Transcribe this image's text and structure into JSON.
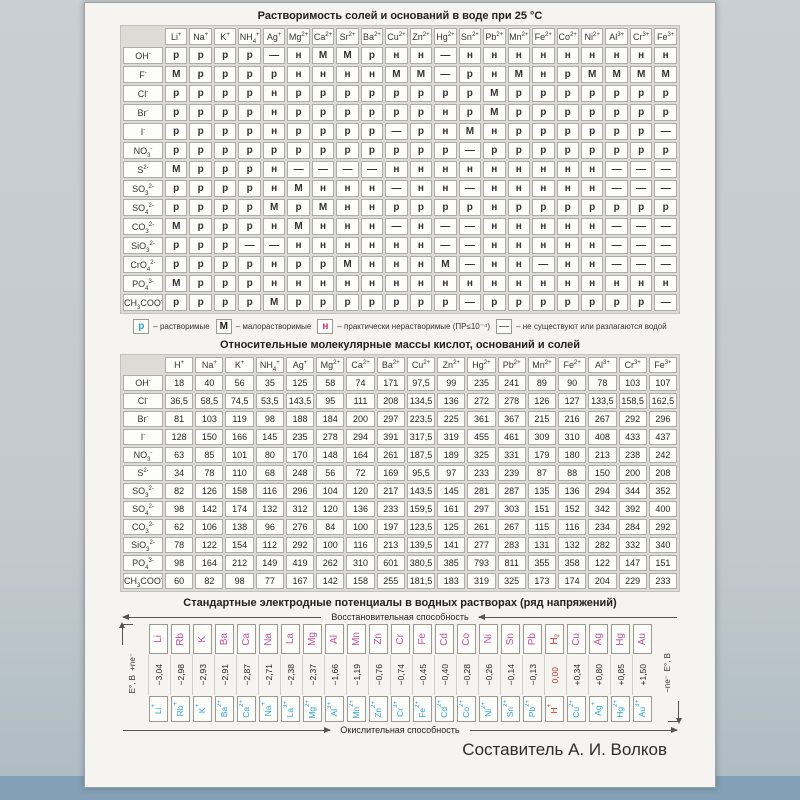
{
  "page": {
    "composer": "Составитель А. И. Волков"
  },
  "solubility": {
    "title": "Растворимость солей и оснований в воде при 25 °С",
    "cations": [
      "Li^+",
      "Na^+",
      "K^+",
      "NH_4^+",
      "Ag^+",
      "Mg^2+",
      "Ca^2+",
      "Sr^2+",
      "Ba^2+",
      "Cu^2+",
      "Zn^2+",
      "Hg^2+",
      "Sn^2+",
      "Pb^2+",
      "Mn^2+",
      "Fe^2+",
      "Co^2+",
      "Ni^2+",
      "Al^3+",
      "Cr^3+",
      "Fe^3+"
    ],
    "rows": [
      {
        "anion": "OH^-",
        "cells": [
          "р",
          "р",
          "р",
          "р",
          "—",
          "н",
          "М",
          "М",
          "р",
          "н",
          "н",
          "—",
          "н",
          "н",
          "н",
          "н",
          "н",
          "н",
          "н",
          "н",
          "н"
        ]
      },
      {
        "anion": "F^-",
        "cells": [
          "М",
          "р",
          "р",
          "р",
          "р",
          "н",
          "н",
          "н",
          "н",
          "М",
          "М",
          "—",
          "р",
          "н",
          "М",
          "н",
          "р",
          "М",
          "М",
          "М",
          "М"
        ]
      },
      {
        "anion": "Cl^-",
        "cells": [
          "р",
          "р",
          "р",
          "р",
          "н",
          "р",
          "р",
          "р",
          "р",
          "р",
          "р",
          "р",
          "р",
          "М",
          "р",
          "р",
          "р",
          "р",
          "р",
          "р",
          "р"
        ]
      },
      {
        "anion": "Br^-",
        "cells": [
          "р",
          "р",
          "р",
          "р",
          "н",
          "р",
          "р",
          "р",
          "р",
          "р",
          "р",
          "н",
          "р",
          "М",
          "р",
          "р",
          "р",
          "р",
          "р",
          "р",
          "р"
        ]
      },
      {
        "anion": "I^-",
        "cells": [
          "р",
          "р",
          "р",
          "р",
          "н",
          "р",
          "р",
          "р",
          "р",
          "—",
          "р",
          "н",
          "М",
          "н",
          "р",
          "р",
          "р",
          "р",
          "р",
          "р",
          "—"
        ]
      },
      {
        "anion": "NO_3^-",
        "cells": [
          "р",
          "р",
          "р",
          "р",
          "р",
          "р",
          "р",
          "р",
          "р",
          "р",
          "р",
          "р",
          "—",
          "р",
          "р",
          "р",
          "р",
          "р",
          "р",
          "р",
          "р"
        ]
      },
      {
        "anion": "S^2-",
        "cells": [
          "М",
          "р",
          "р",
          "р",
          "н",
          "—",
          "—",
          "—",
          "—",
          "н",
          "н",
          "н",
          "н",
          "н",
          "н",
          "н",
          "н",
          "н",
          "—",
          "—",
          "—"
        ]
      },
      {
        "anion": "SO_3^2-",
        "cells": [
          "р",
          "р",
          "р",
          "р",
          "н",
          "М",
          "н",
          "н",
          "н",
          "—",
          "н",
          "н",
          "—",
          "н",
          "н",
          "н",
          "н",
          "н",
          "—",
          "—",
          "—"
        ]
      },
      {
        "anion": "SO_4^2-",
        "cells": [
          "р",
          "р",
          "р",
          "р",
          "М",
          "р",
          "М",
          "н",
          "н",
          "р",
          "р",
          "р",
          "р",
          "н",
          "р",
          "р",
          "р",
          "р",
          "р",
          "р",
          "р"
        ]
      },
      {
        "anion": "CO_3^2-",
        "cells": [
          "М",
          "р",
          "р",
          "р",
          "н",
          "М",
          "н",
          "н",
          "н",
          "—",
          "н",
          "—",
          "—",
          "н",
          "н",
          "н",
          "н",
          "н",
          "—",
          "—",
          "—"
        ]
      },
      {
        "anion": "SiO_3^2-",
        "cells": [
          "р",
          "р",
          "р",
          "—",
          "—",
          "н",
          "н",
          "н",
          "н",
          "н",
          "н",
          "—",
          "—",
          "н",
          "н",
          "н",
          "н",
          "н",
          "—",
          "—",
          "—"
        ]
      },
      {
        "anion": "CrO_4^2-",
        "cells": [
          "р",
          "р",
          "р",
          "р",
          "н",
          "р",
          "р",
          "М",
          "н",
          "н",
          "н",
          "М",
          "—",
          "н",
          "н",
          "—",
          "н",
          "н",
          "—",
          "—",
          "—"
        ]
      },
      {
        "anion": "PO_4^3-",
        "cells": [
          "М",
          "р",
          "р",
          "р",
          "н",
          "н",
          "н",
          "н",
          "н",
          "н",
          "н",
          "н",
          "н",
          "н",
          "н",
          "н",
          "н",
          "н",
          "н",
          "н",
          "н"
        ]
      },
      {
        "anion": "CH_3COO^-",
        "cells": [
          "р",
          "р",
          "р",
          "р",
          "М",
          "р",
          "р",
          "р",
          "р",
          "р",
          "р",
          "р",
          "—",
          "р",
          "р",
          "р",
          "р",
          "р",
          "р",
          "р",
          "—"
        ]
      }
    ],
    "legend": [
      {
        "symbol": "р",
        "text": "– растворимые"
      },
      {
        "symbol": "М",
        "text": "– малорастворимые"
      },
      {
        "symbol": "н",
        "text": "– практически нерастворимые (ПР≤10⁻⁴)"
      },
      {
        "symbol": "—",
        "text": "– не существуют или разлагаются водой"
      }
    ]
  },
  "masses": {
    "title": "Относительные молекулярные массы кислот, оснований и солей",
    "cations": [
      "H^+",
      "Na^+",
      "K^+",
      "NH_4^+",
      "Ag^+",
      "Mg^2+",
      "Ca^2+",
      "Ba^2+",
      "Cu^2+",
      "Zn^2+",
      "Hg^2+",
      "Pb^2+",
      "Mn^2+",
      "Fe^2+",
      "Al^3+",
      "Cr^3+",
      "Fe^3+"
    ],
    "rows": [
      {
        "anion": "OH^-",
        "cells": [
          "18",
          "40",
          "56",
          "35",
          "125",
          "58",
          "74",
          "171",
          "97,5",
          "99",
          "235",
          "241",
          "89",
          "90",
          "78",
          "103",
          "107"
        ]
      },
      {
        "anion": "Cl^-",
        "cells": [
          "36,5",
          "58,5",
          "74,5",
          "53,5",
          "143,5",
          "95",
          "111",
          "208",
          "134,5",
          "136",
          "272",
          "278",
          "126",
          "127",
          "133,5",
          "158,5",
          "162,5"
        ]
      },
      {
        "anion": "Br^-",
        "cells": [
          "81",
          "103",
          "119",
          "98",
          "188",
          "184",
          "200",
          "297",
          "223,5",
          "225",
          "361",
          "367",
          "215",
          "216",
          "267",
          "292",
          "296"
        ]
      },
      {
        "anion": "I^-",
        "cells": [
          "128",
          "150",
          "166",
          "145",
          "235",
          "278",
          "294",
          "391",
          "317,5",
          "319",
          "455",
          "461",
          "309",
          "310",
          "408",
          "433",
          "437"
        ]
      },
      {
        "anion": "NO_3^-",
        "cells": [
          "63",
          "85",
          "101",
          "80",
          "170",
          "148",
          "164",
          "261",
          "187,5",
          "189",
          "325",
          "331",
          "179",
          "180",
          "213",
          "238",
          "242"
        ]
      },
      {
        "anion": "S^2-",
        "cells": [
          "34",
          "78",
          "110",
          "68",
          "248",
          "56",
          "72",
          "169",
          "95,5",
          "97",
          "233",
          "239",
          "87",
          "88",
          "150",
          "200",
          "208"
        ]
      },
      {
        "anion": "SO_3^2-",
        "cells": [
          "82",
          "126",
          "158",
          "116",
          "296",
          "104",
          "120",
          "217",
          "143,5",
          "145",
          "281",
          "287",
          "135",
          "136",
          "294",
          "344",
          "352"
        ]
      },
      {
        "anion": "SO_4^2-",
        "cells": [
          "98",
          "142",
          "174",
          "132",
          "312",
          "120",
          "136",
          "233",
          "159,5",
          "161",
          "297",
          "303",
          "151",
          "152",
          "342",
          "392",
          "400"
        ]
      },
      {
        "anion": "CO_3^2-",
        "cells": [
          "62",
          "106",
          "138",
          "96",
          "276",
          "84",
          "100",
          "197",
          "123,5",
          "125",
          "261",
          "267",
          "115",
          "116",
          "234",
          "284",
          "292"
        ]
      },
      {
        "anion": "SiO_3^2-",
        "cells": [
          "78",
          "122",
          "154",
          "112",
          "292",
          "100",
          "116",
          "213",
          "139,5",
          "141",
          "277",
          "283",
          "131",
          "132",
          "282",
          "332",
          "340"
        ]
      },
      {
        "anion": "PO_4^3-",
        "cells": [
          "98",
          "164",
          "212",
          "149",
          "419",
          "262",
          "310",
          "601",
          "380,5",
          "385",
          "793",
          "811",
          "355",
          "358",
          "122",
          "147",
          "151"
        ]
      },
      {
        "anion": "CH_3COO^-",
        "cells": [
          "60",
          "82",
          "98",
          "77",
          "167",
          "142",
          "158",
          "255",
          "181,5",
          "183",
          "319",
          "325",
          "173",
          "174",
          "204",
          "229",
          "233"
        ]
      }
    ]
  },
  "potentials": {
    "title": "Стандартные электродные потенциалы в водных растворах (ряд напряжений)",
    "reduction_label": "Восстановительная способность",
    "oxidation_label": "Окислительная способность",
    "gain_label": "+ne⁻",
    "loss_label": "−ne⁻",
    "e_axis_label": "Е°, В",
    "elements": [
      "Li",
      "Rb",
      "K",
      "Ba",
      "Ca",
      "Na",
      "La",
      "Mg",
      "Al",
      "Mn",
      "Zn",
      "Cr",
      "Fe",
      "Cd",
      "Co",
      "Ni",
      "Sn",
      "Pb",
      "H_2",
      "Cu",
      "Ag",
      "Hg",
      "Au"
    ],
    "values": [
      "−3,04",
      "−2,98",
      "−2,93",
      "−2,91",
      "−2,87",
      "−2,71",
      "−2,38",
      "−2,37",
      "−1,66",
      "−1,19",
      "−0,76",
      "−0,74",
      "−0,45",
      "−0,40",
      "−0,28",
      "−0,26",
      "−0,14",
      "−0,13",
      "0,00",
      "+0,34",
      "+0,80",
      "+0,85",
      "+1,50"
    ],
    "ions": [
      "Li^+",
      "Rb^+",
      "K^+",
      "Ba^2+",
      "Ca^2+",
      "Na^+",
      "La^3+",
      "Mg^2+",
      "Al^3+",
      "Mn^2+",
      "Zn^2+",
      "Cr^3+",
      "Fe^2+",
      "Cd^2+",
      "Co^2+",
      "Ni^2+",
      "Sn^2+",
      "Pb^2+",
      "H^+",
      "Cu^2+",
      "Ag^+",
      "Hg^2+",
      "Au^3+"
    ]
  }
}
